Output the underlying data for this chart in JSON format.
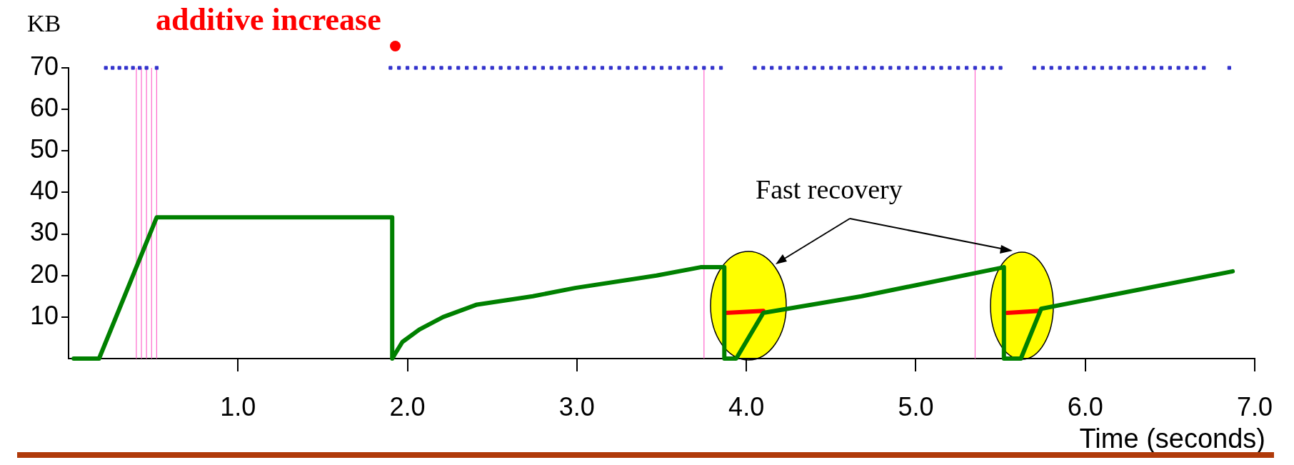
{
  "chart_data": {
    "type": "line",
    "title": "additive increase",
    "xlabel": "Time (seconds)",
    "ylabel": "KB",
    "annotations": [
      "Fast recovery"
    ],
    "xlim": [
      0,
      7
    ],
    "ylim": [
      0,
      70
    ],
    "xticks": [
      {
        "value": 1,
        "label": "1.0"
      },
      {
        "value": 2,
        "label": "2.0"
      },
      {
        "value": 3,
        "label": "3.0"
      },
      {
        "value": 4,
        "label": "4.0"
      },
      {
        "value": 5,
        "label": "5.0"
      },
      {
        "value": 6,
        "label": "6.0"
      },
      {
        "value": 7,
        "label": "7.0"
      }
    ],
    "yticks": [
      10,
      20,
      30,
      40,
      50,
      60,
      70
    ],
    "ref_lines": [
      {
        "axis": "x",
        "value": 0.4,
        "color": "#ff66cc"
      },
      {
        "axis": "x",
        "value": 0.43,
        "color": "#ff66cc"
      },
      {
        "axis": "x",
        "value": 0.46,
        "color": "#ff66cc"
      },
      {
        "axis": "x",
        "value": 0.49,
        "color": "#ff66cc"
      },
      {
        "axis": "x",
        "value": 0.52,
        "color": "#ff66cc"
      },
      {
        "axis": "x",
        "value": 3.75,
        "color": "#ff66cc"
      },
      {
        "axis": "x",
        "value": 5.35,
        "color": "#ff66cc"
      }
    ],
    "series": [
      {
        "type": "line",
        "color": "#008000",
        "x": [
          0.03,
          0.18,
          0.52,
          1.91,
          1.91,
          1.97,
          2.07,
          2.21,
          2.41,
          2.74,
          2.99,
          3.47,
          3.73,
          3.87,
          3.87,
          3.94,
          4.1,
          4.68,
          5.52,
          5.52,
          5.62,
          5.74,
          6.87
        ],
        "values": [
          0,
          0,
          34,
          34,
          0,
          4,
          7,
          10,
          13,
          15,
          17,
          20,
          22,
          22,
          0,
          0,
          11,
          15,
          22,
          0,
          0,
          12,
          21
        ]
      },
      {
        "type": "line",
        "color": "#ff0000",
        "x": [
          3.88,
          4.1
        ],
        "values": [
          11,
          11.5
        ]
      },
      {
        "type": "line",
        "color": "#ff0000",
        "x": [
          5.54,
          5.73
        ],
        "values": [
          11,
          11.5
        ]
      },
      {
        "type": "scatter",
        "color": "#3333cc",
        "marker": "square",
        "x": [
          0.22,
          0.26,
          0.3,
          0.34,
          0.38,
          0.42,
          0.46,
          0.52,
          1.9,
          1.95,
          2.0,
          2.05,
          2.1,
          2.15,
          2.2,
          2.25,
          2.3,
          2.35,
          2.4,
          2.45,
          2.5,
          2.55,
          2.6,
          2.65,
          2.7,
          2.75,
          2.8,
          2.85,
          2.9,
          2.95,
          3.0,
          3.05,
          3.1,
          3.15,
          3.2,
          3.25,
          3.3,
          3.35,
          3.4,
          3.45,
          3.5,
          3.55,
          3.6,
          3.65,
          3.7,
          3.75,
          3.8,
          3.85,
          4.05,
          4.1,
          4.15,
          4.2,
          4.25,
          4.3,
          4.35,
          4.4,
          4.45,
          4.5,
          4.55,
          4.6,
          4.65,
          4.7,
          4.75,
          4.8,
          4.85,
          4.9,
          4.95,
          5.0,
          5.05,
          5.1,
          5.15,
          5.2,
          5.25,
          5.3,
          5.35,
          5.4,
          5.45,
          5.5,
          5.7,
          5.75,
          5.8,
          5.85,
          5.9,
          5.95,
          6.0,
          6.05,
          6.1,
          6.15,
          6.2,
          6.25,
          6.3,
          6.35,
          6.4,
          6.45,
          6.5,
          6.55,
          6.6,
          6.65,
          6.7,
          6.85
        ],
        "values": [
          70,
          70,
          70,
          70,
          70,
          70,
          70,
          70,
          70,
          70,
          70,
          70,
          70,
          70,
          70,
          70,
          70,
          70,
          70,
          70,
          70,
          70,
          70,
          70,
          70,
          70,
          70,
          70,
          70,
          70,
          70,
          70,
          70,
          70,
          70,
          70,
          70,
          70,
          70,
          70,
          70,
          70,
          70,
          70,
          70,
          70,
          70,
          70,
          70,
          70,
          70,
          70,
          70,
          70,
          70,
          70,
          70,
          70,
          70,
          70,
          70,
          70,
          70,
          70,
          70,
          70,
          70,
          70,
          70,
          70,
          70,
          70,
          70,
          70,
          70,
          70,
          70,
          70,
          70,
          70,
          70,
          70,
          70,
          70,
          70,
          70,
          70,
          70,
          70,
          70,
          70,
          70,
          70,
          70,
          70,
          70,
          70,
          70,
          70,
          70
        ]
      }
    ]
  }
}
